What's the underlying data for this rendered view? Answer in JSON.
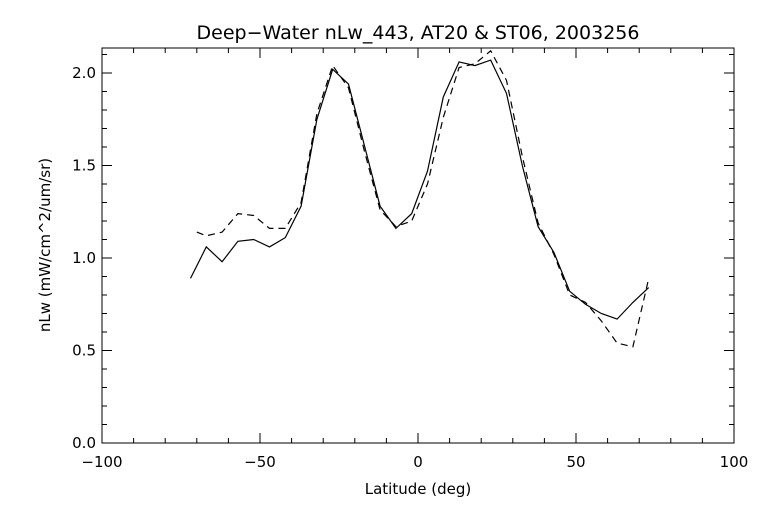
{
  "chart_data": {
    "type": "line",
    "title": "Deep−Water nLw_443, AT20 & ST06, 2003256",
    "xlabel": "Latitude (deg)",
    "ylabel": "nLw (mW/cm^2/um/sr)",
    "xlim": [
      -100,
      100
    ],
    "ylim": [
      0.0,
      2.13
    ],
    "xticks": [
      -100,
      -50,
      0,
      50,
      100
    ],
    "xtick_labels": [
      "−100",
      "−50",
      "0",
      "50",
      "100"
    ],
    "yticks": [
      0.0,
      0.5,
      1.0,
      1.5,
      2.0
    ],
    "ytick_labels": [
      "0.0",
      "0.5",
      "1.0",
      "1.5",
      "2.0"
    ],
    "grid": false,
    "series": [
      {
        "style": "solid",
        "x": [
          -72,
          -67,
          -62,
          -57,
          -52,
          -47,
          -42,
          -37,
          -32,
          -27,
          -22,
          -17,
          -12,
          -7,
          -2,
          3,
          8,
          13,
          18,
          23,
          28,
          33,
          38,
          43,
          48,
          53,
          58,
          63,
          68,
          73
        ],
        "y": [
          0.89,
          1.06,
          0.98,
          1.09,
          1.1,
          1.06,
          1.11,
          1.28,
          1.75,
          2.02,
          1.94,
          1.61,
          1.28,
          1.16,
          1.24,
          1.47,
          1.87,
          2.06,
          2.04,
          2.07,
          1.89,
          1.5,
          1.17,
          1.03,
          0.82,
          0.75,
          0.7,
          0.67,
          0.76,
          0.84
        ]
      },
      {
        "style": "dashed",
        "x": [
          -70,
          -67,
          -62,
          -57,
          -52,
          -47,
          -42,
          -37,
          -32,
          -27,
          -22,
          -17,
          -12,
          -7,
          -2,
          3,
          8,
          13,
          18,
          23,
          28,
          33,
          38,
          43,
          48,
          53,
          58,
          63,
          68,
          73
        ],
        "y": [
          1.14,
          1.12,
          1.14,
          1.24,
          1.23,
          1.16,
          1.16,
          1.3,
          1.78,
          2.04,
          1.92,
          1.58,
          1.26,
          1.17,
          1.2,
          1.4,
          1.76,
          2.03,
          2.05,
          2.12,
          1.96,
          1.55,
          1.19,
          1.02,
          0.8,
          0.76,
          0.66,
          0.54,
          0.52,
          0.89
        ]
      }
    ]
  }
}
